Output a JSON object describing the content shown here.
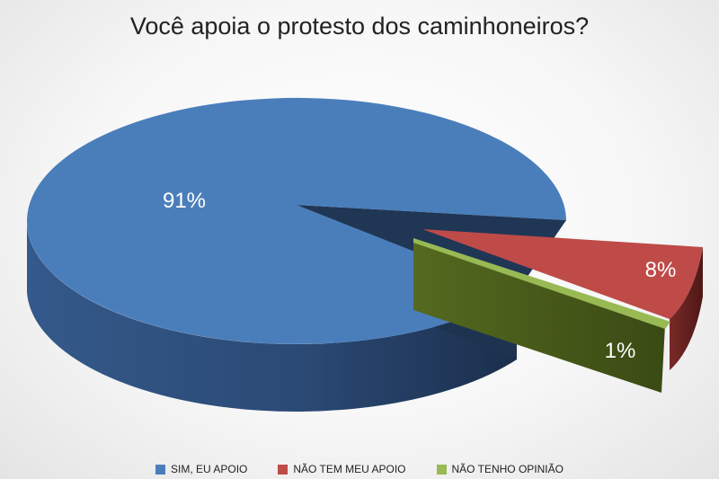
{
  "chart_data": {
    "type": "pie",
    "title": "Você apoia o protesto dos caminhoneiros?",
    "style": "3d-exploded",
    "legend_position": "bottom",
    "slices": [
      {
        "name": "SIM, EU APOIO",
        "value": 91,
        "label": "91%",
        "color": "#4a7ebb"
      },
      {
        "name": "NÃO TEM MEU APOIO",
        "value": 8,
        "label": "8%",
        "color": "#be4b48"
      },
      {
        "name": "NÃO TENHO OPINIÃO",
        "value": 1,
        "label": "1%",
        "color": "#98b954"
      }
    ]
  }
}
